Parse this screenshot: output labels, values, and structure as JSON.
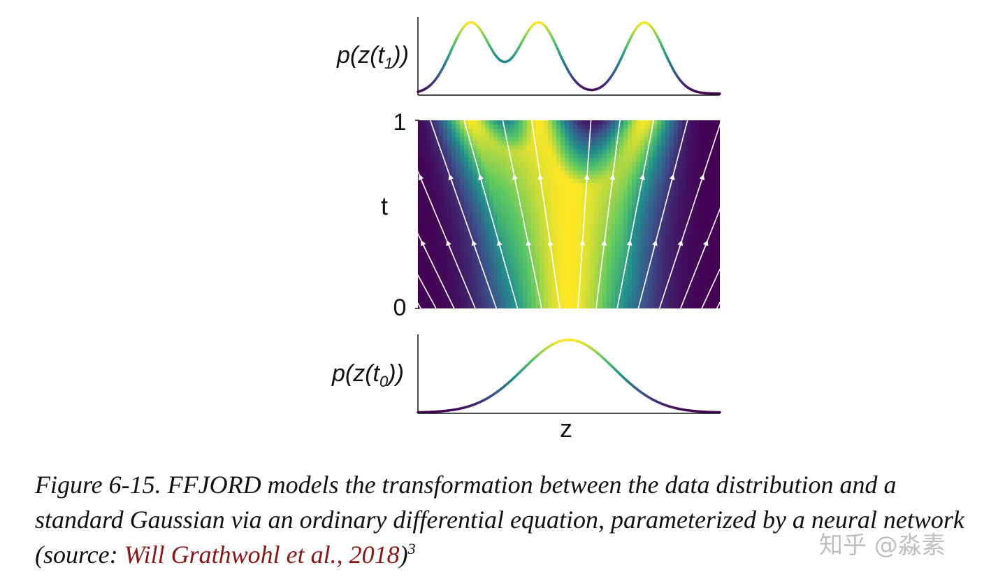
{
  "figure": {
    "top_panel": {
      "ylabel_prefix": "p(z(t",
      "ylabel_sub": "1",
      "ylabel_suffix": "))"
    },
    "middle_panel": {
      "ylabel": "t",
      "ytick_top": "1",
      "ytick_bottom": "0"
    },
    "bottom_panel": {
      "ylabel_prefix": "p(z(t",
      "ylabel_sub": "0",
      "ylabel_suffix": "))",
      "xlabel": "z"
    }
  },
  "chart_data": [
    {
      "type": "line",
      "panel": "top",
      "description_of_curve": "trimodal density at t1",
      "peaks_z": [
        -0.65,
        -0.2,
        0.5
      ],
      "colormap": "viridis"
    },
    {
      "type": "heatmap",
      "panel": "middle",
      "ylabel": "t",
      "ylim": [
        0,
        1
      ],
      "colormap": "viridis",
      "overlay": "streamlines with upward arrows"
    },
    {
      "type": "line",
      "panel": "bottom",
      "description_of_curve": "standard Gaussian density at t0",
      "xlabel": "z",
      "colormap": "viridis"
    }
  ],
  "caption": {
    "text_before": "Figure 6-15. FFJORD models the transformation between the data distribution and a standard Gaussian via an ordinary differential equation, parameterized by a neural network (source: ",
    "link_text": "Will Grathwohl et al., 2018",
    "text_after": ")",
    "footnote": "3"
  },
  "watermark": "知乎 @淼素",
  "colors": {
    "link": "#8b1414",
    "colormap_low": "#440154",
    "colormap_high": "#fde725"
  }
}
